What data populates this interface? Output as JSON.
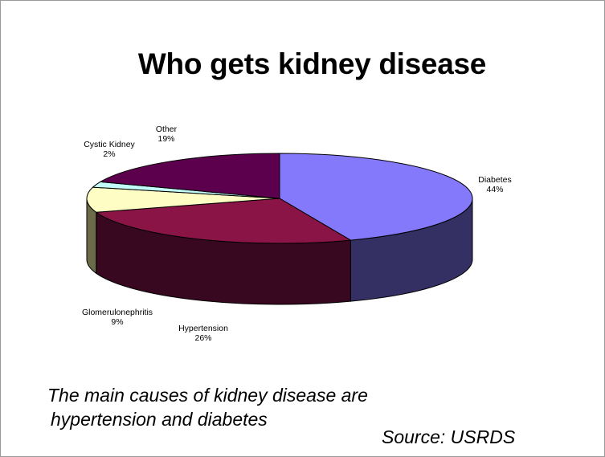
{
  "slide": {
    "title": "Who gets kidney disease",
    "caption_line1": "The main causes of kidney disease are",
    "caption_line2": "hypertension and diabetes",
    "source": "Source: USRDS"
  },
  "chart_data": {
    "type": "pie",
    "style": "3d",
    "title": "",
    "slices": [
      {
        "name": "Diabetes",
        "value": 44,
        "label": "44%",
        "top_color": "#8579fb",
        "side_color": "#343064"
      },
      {
        "name": "Hypertension",
        "value": 26,
        "label": "26%",
        "top_color": "#8b1447",
        "side_color": "#380720"
      },
      {
        "name": "Glomerulonephritis",
        "value": 9,
        "label": "9%",
        "top_color": "#fdfdc4",
        "side_color": "#6b6b4a"
      },
      {
        "name": "Cystic Kidney",
        "value": 2,
        "label": "2%",
        "top_color": "#c3fbfb",
        "side_color": "#4f6b6b"
      },
      {
        "name": "Other",
        "value": 19,
        "label": "19%",
        "top_color": "#5c004d",
        "side_color": "#2a0024"
      }
    ]
  }
}
